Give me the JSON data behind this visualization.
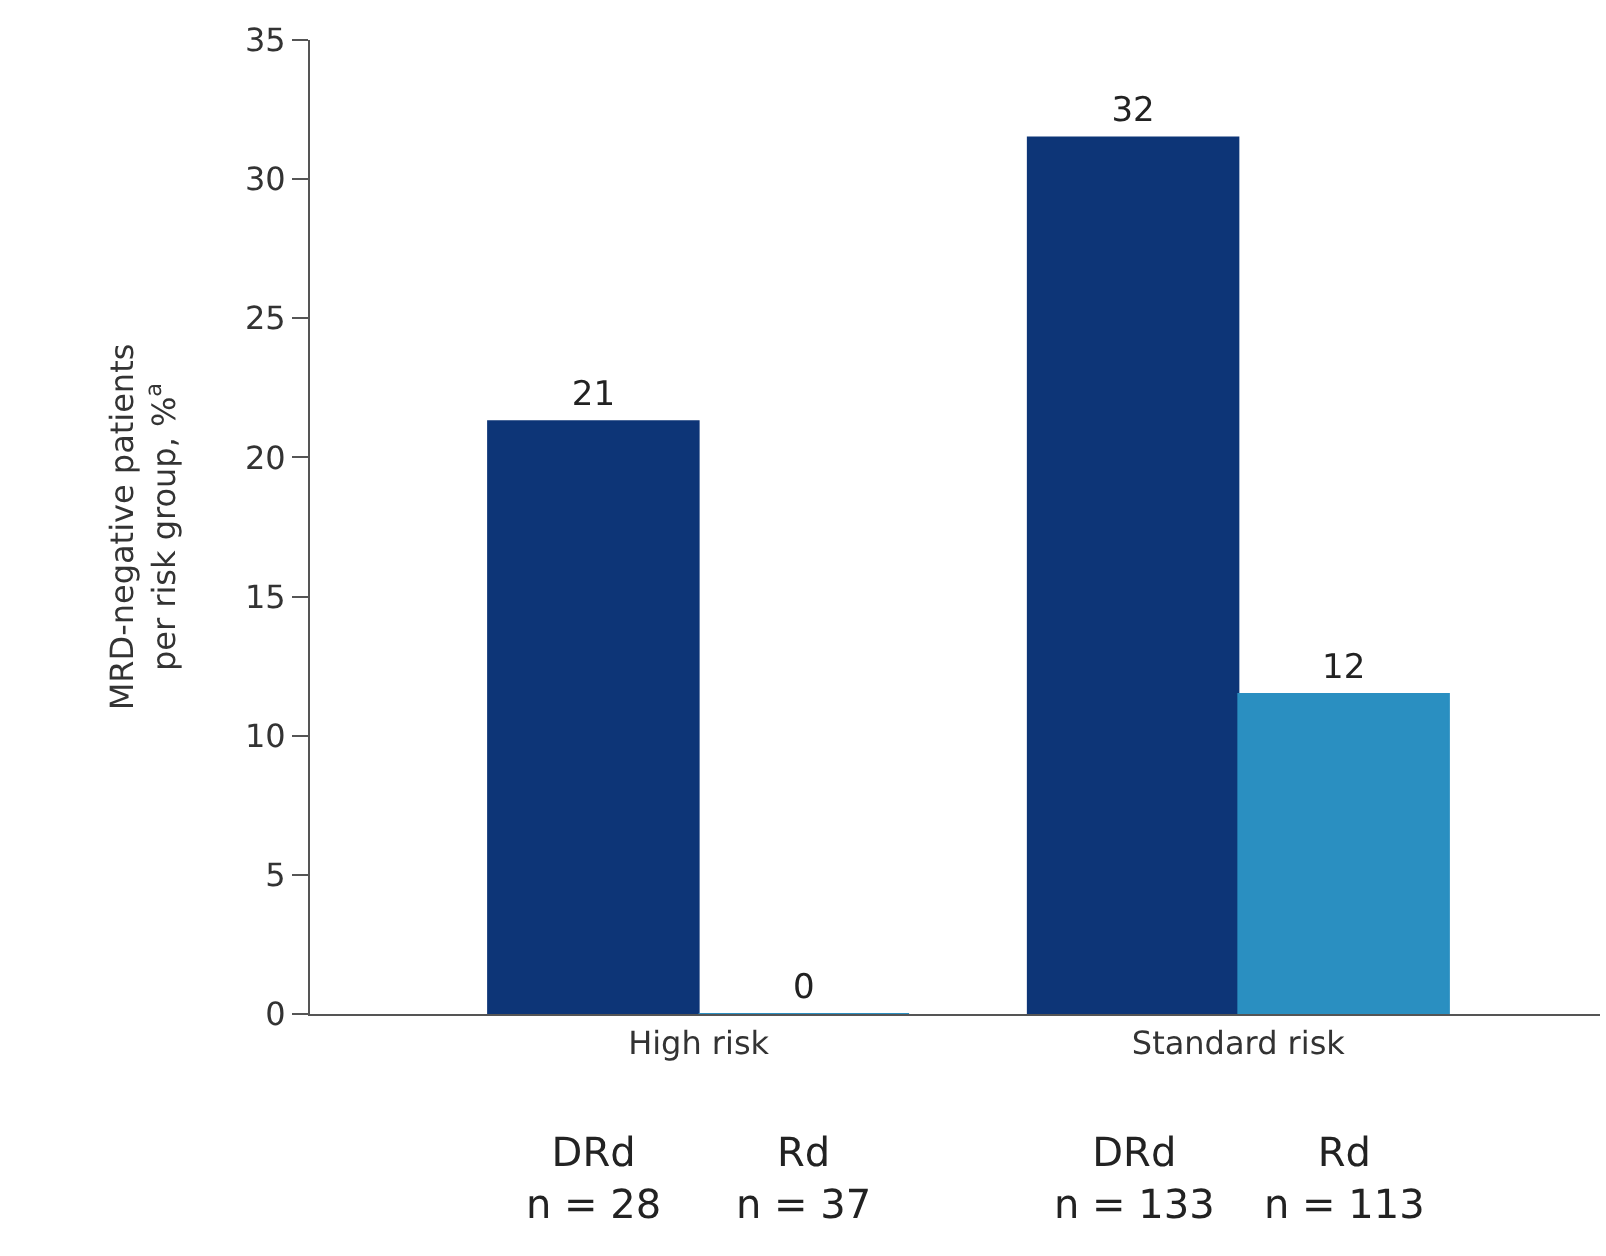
{
  "chart_data": {
    "type": "bar",
    "ylabel": "MRD-negative patients\nper risk group, %$^{a}$",
    "categories": [
      "High risk",
      "Standard risk"
    ],
    "series": [
      {
        "name": "DRd",
        "color": "#0d3577",
        "values": [
          21.3,
          31.5
        ],
        "value_labels": [
          "21",
          "32"
        ]
      },
      {
        "name": "Rd",
        "color": "#2a8fc1",
        "values": [
          0,
          11.5
        ],
        "value_labels": [
          "0",
          "12"
        ]
      }
    ],
    "annotations": [
      "n = 28",
      "n = 37",
      "n = 133",
      "n = 113"
    ],
    "ylim": [
      0,
      35
    ],
    "yticks": [
      0,
      5,
      10,
      15,
      20,
      25,
      30,
      35
    ],
    "legend": false
  }
}
